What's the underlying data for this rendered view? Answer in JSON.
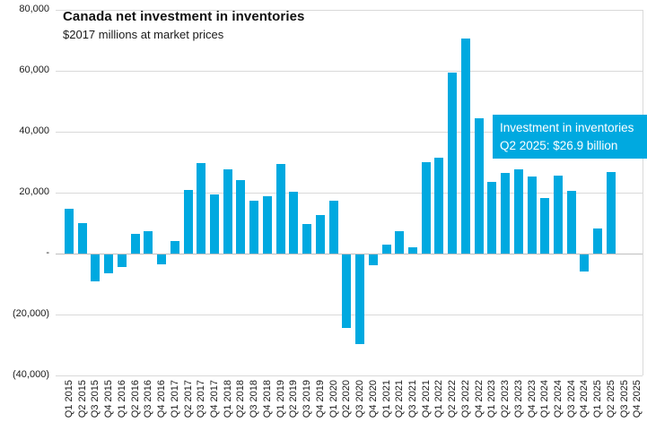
{
  "chart_data": {
    "type": "bar",
    "title": "Canada net investment in inventories",
    "subtitle": "$2017 millions at market prices",
    "unit": "$2017 millions at market prices",
    "categories": [
      "Q1 2015",
      "Q2 2015",
      "Q3 2015",
      "Q4 2015",
      "Q1 2016",
      "Q2 2016",
      "Q3 2016",
      "Q4 2016",
      "Q1 2017",
      "Q2 2017",
      "Q3 2017",
      "Q4 2017",
      "Q1 2018",
      "Q2 2018",
      "Q3 2018",
      "Q4 2018",
      "Q1 2019",
      "Q2 2019",
      "Q3 2019",
      "Q4 2019",
      "Q1 2020",
      "Q2 2020",
      "Q3 2020",
      "Q4 2020",
      "Q1 2021",
      "Q2 2021",
      "Q3 2021",
      "Q4 2021",
      "Q1 2022",
      "Q2 2022",
      "Q3 2022",
      "Q4 2022",
      "Q1 2023",
      "Q2 2023",
      "Q3 2023",
      "Q4 2023",
      "Q1 2024",
      "Q2 2024",
      "Q3 2024",
      "Q4 2024",
      "Q1 2025",
      "Q2 2025",
      "Q3 2025",
      "Q4 2025"
    ],
    "values": [
      14800,
      9900,
      -8800,
      -6200,
      -4100,
      6500,
      7400,
      -3200,
      4100,
      20900,
      29700,
      19400,
      27600,
      24100,
      17400,
      18800,
      29400,
      20300,
      9700,
      12600,
      17400,
      -24100,
      -29400,
      -3500,
      2900,
      7400,
      2000,
      30000,
      31500,
      59500,
      70600,
      44400,
      23500,
      26500,
      27600,
      25300,
      18200,
      25600,
      20600,
      -5600,
      8200,
      26900,
      null,
      null
    ],
    "ylim": [
      -40000,
      80000
    ],
    "yticks": [
      {
        "value": 80000,
        "label": "80,000"
      },
      {
        "value": 60000,
        "label": "60,000"
      },
      {
        "value": 40000,
        "label": "40,000"
      },
      {
        "value": 20000,
        "label": "20,000"
      },
      {
        "value": 0,
        "label": "-"
      },
      {
        "value": -20000,
        "label": "(20,000)"
      },
      {
        "value": -40000,
        "label": "(40,000)"
      }
    ],
    "grid": true,
    "legend": "none",
    "bar_color": "#00A9E0",
    "annotation": {
      "line1": "Investment in inventories",
      "line2": "Q2 2025: $26.9 billion",
      "bg_color": "#00A9E0",
      "text_color": "#ffffff"
    }
  }
}
